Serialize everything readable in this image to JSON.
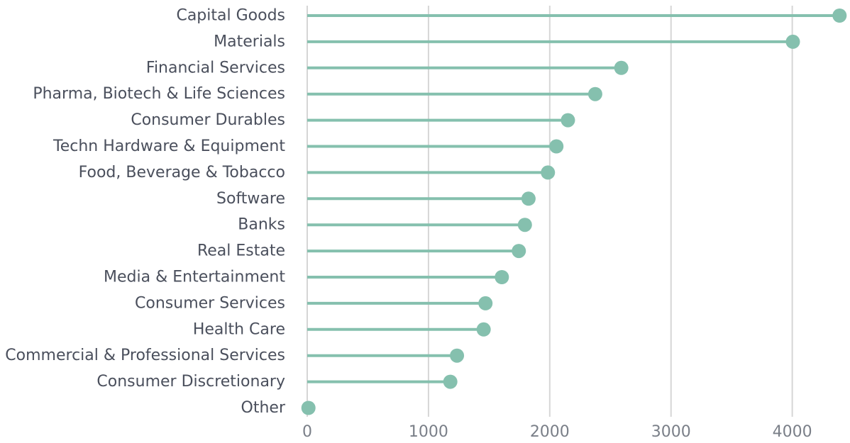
{
  "chart_data": {
    "type": "lollipop",
    "orientation": "horizontal",
    "title": "",
    "xlabel": "",
    "ylabel": "",
    "xlim": [
      0,
      4400
    ],
    "xticks": [
      0,
      1000,
      2000,
      3000,
      4000
    ],
    "grid": "vertical",
    "legend": "none",
    "color": "#85c0ae",
    "categories": [
      "Capital Goods",
      "Materials",
      "Financial Services",
      "Pharma, Biotech & Life Sciences",
      "Consumer Durables",
      "Techn Hardware & Equipment",
      "Food, Beverage & Tobacco",
      "Software",
      "Banks",
      "Real Estate",
      "Media & Entertainment",
      "Consumer Services",
      "Health Care",
      "Commercial & Professional Services",
      "Consumer Discretionary",
      "Other"
    ],
    "values": [
      4390,
      4005,
      2590,
      2375,
      2150,
      2055,
      1985,
      1825,
      1795,
      1745,
      1605,
      1470,
      1455,
      1235,
      1180,
      10
    ]
  }
}
